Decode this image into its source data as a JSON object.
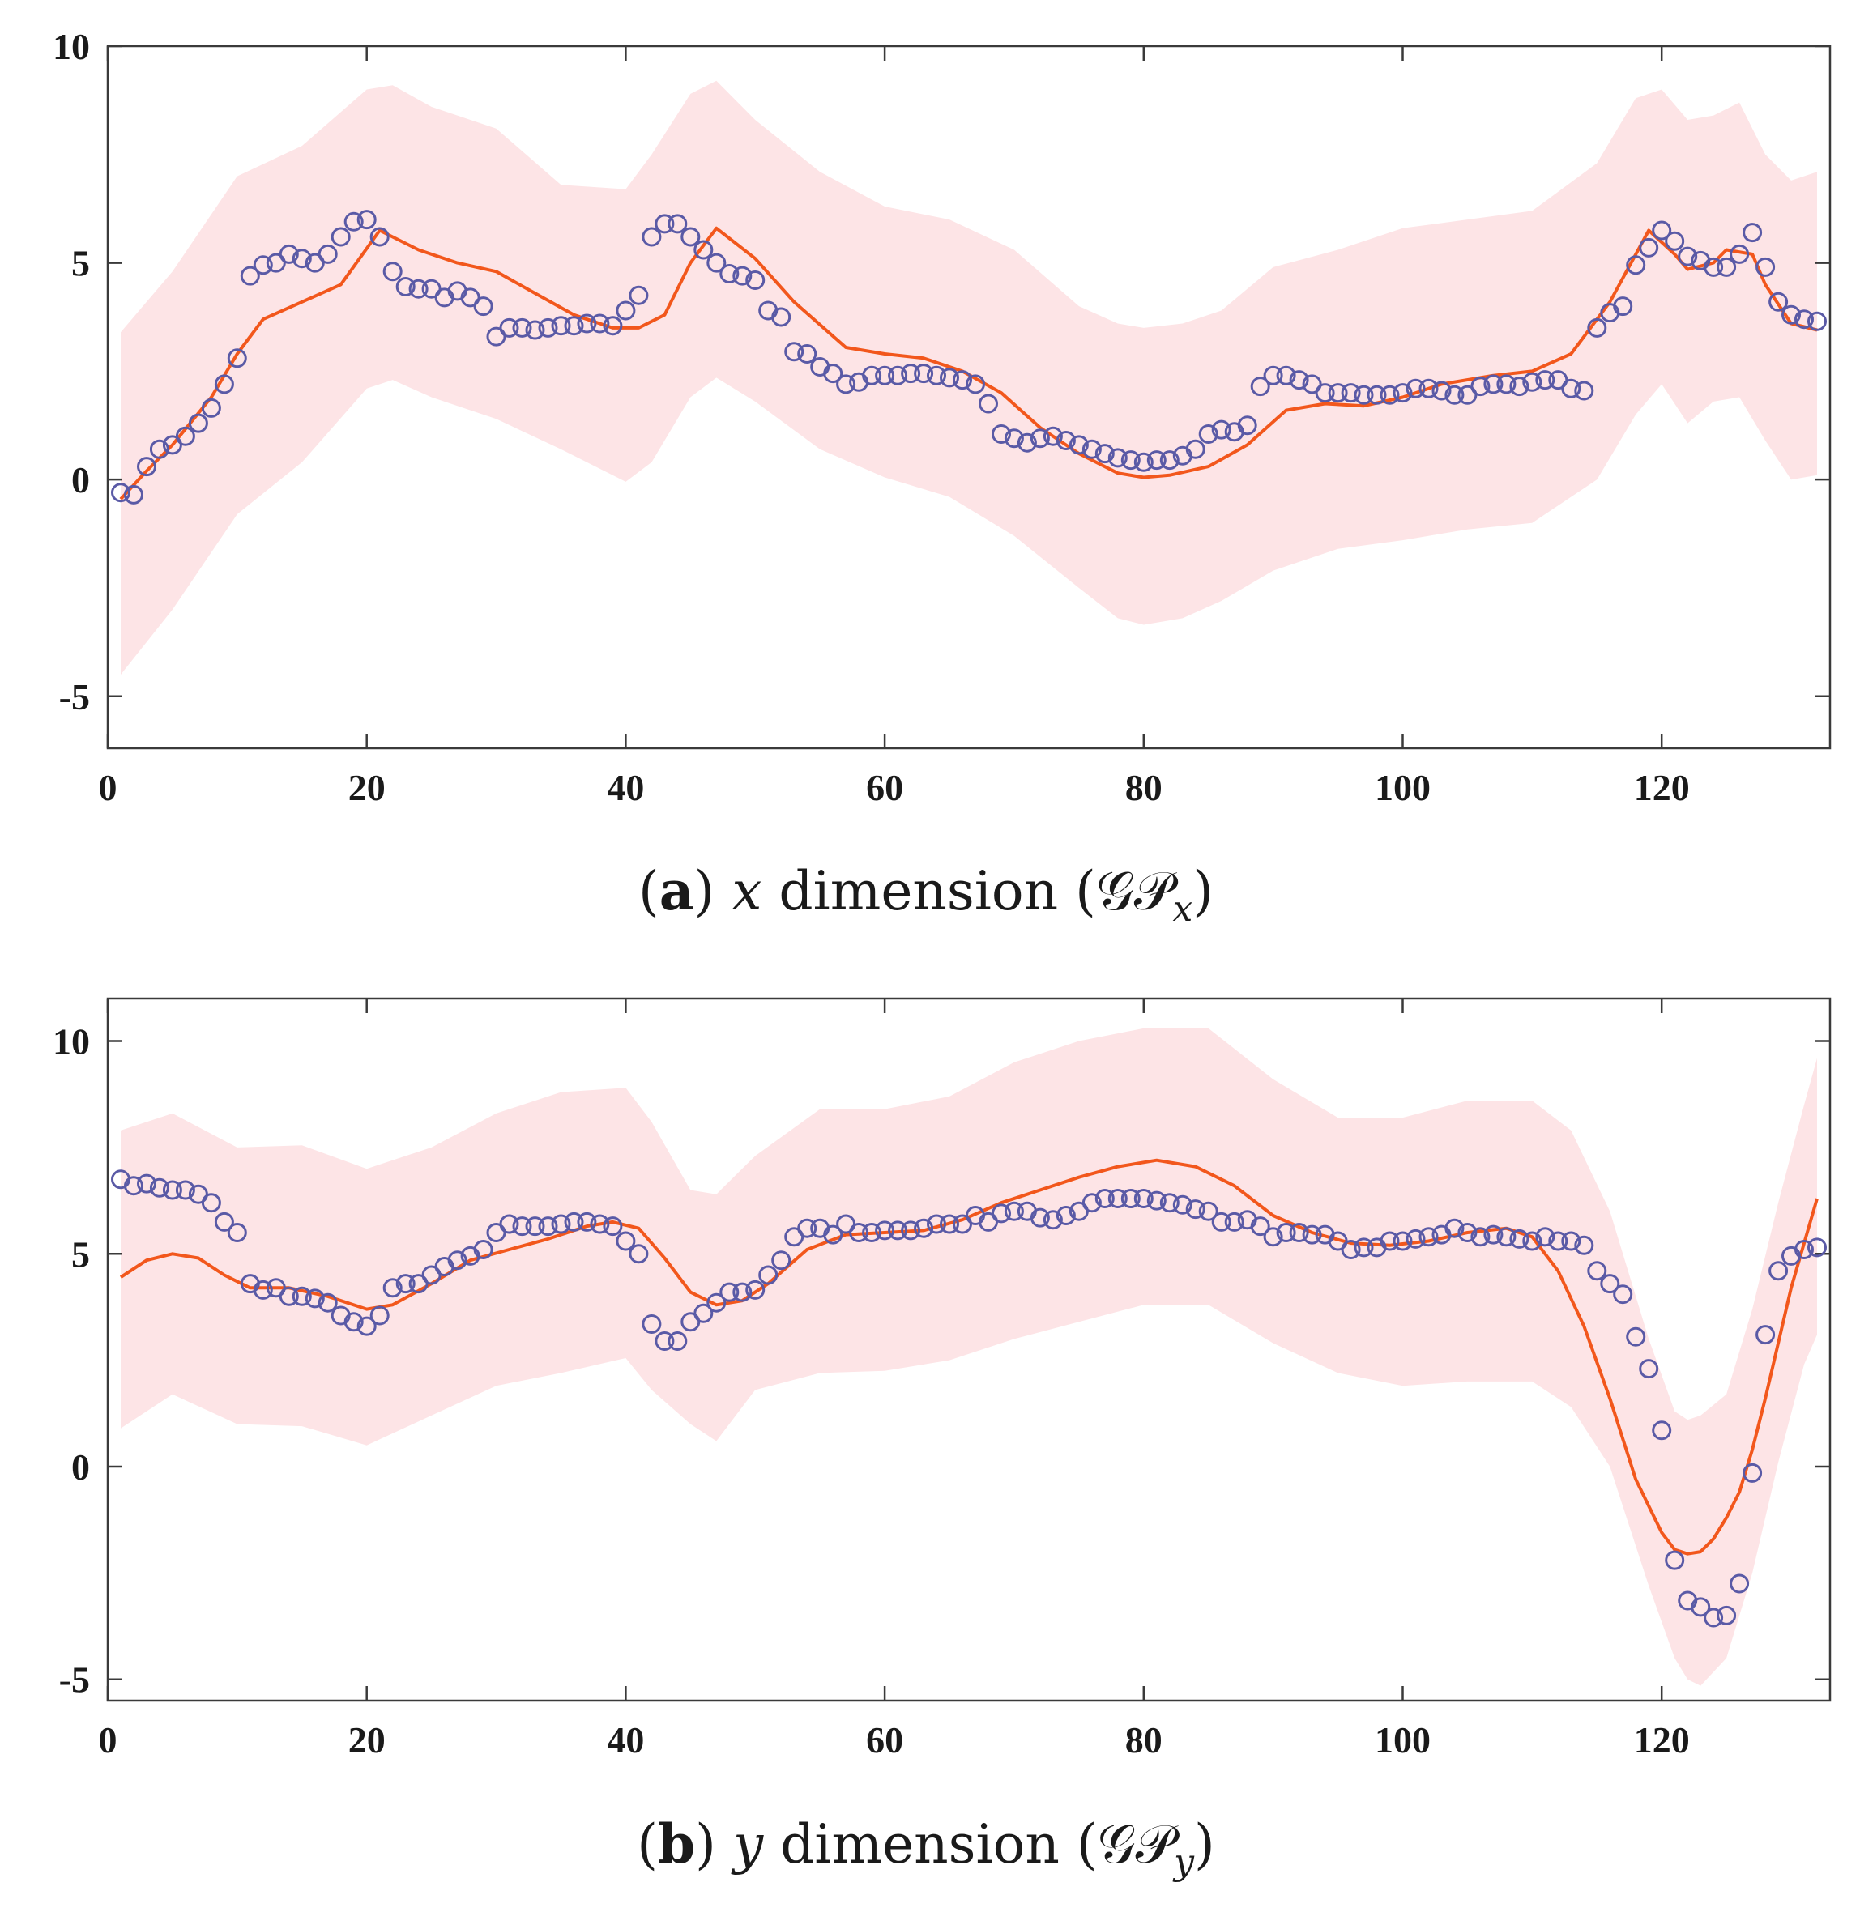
{
  "colors": {
    "band": "#fde4e6",
    "mean_line": "#f2571c",
    "observations": "#5a5aa6",
    "axes": "#3a3a3a"
  },
  "chart_data": [
    {
      "type": "line",
      "panel": "a",
      "caption": {
        "letter": "a",
        "variable": "x",
        "text": "dimension",
        "gp_label": "(𝒢𝒫",
        "subscript": "x",
        "close": ")"
      },
      "xlim": [
        0,
        133
      ],
      "ylim": [
        -6.2,
        10
      ],
      "xticks": [
        0,
        20,
        40,
        60,
        80,
        100,
        120
      ],
      "xtick_labels": [
        "0",
        "20",
        "40",
        "60",
        "80",
        "100",
        "120"
      ],
      "yticks": [
        -5,
        0,
        5,
        10
      ],
      "ytick_labels": [
        "-5",
        "0",
        "5",
        "10"
      ],
      "series": [
        {
          "name": "observations",
          "kind": "scatter",
          "x": [
            1,
            2,
            3,
            4,
            5,
            6,
            7,
            8,
            9,
            10,
            11,
            12,
            13,
            14,
            15,
            16,
            17,
            18,
            19,
            20,
            21,
            22,
            23,
            24,
            25,
            26,
            27,
            28,
            29,
            30,
            31,
            32,
            33,
            34,
            35,
            36,
            37,
            38,
            39,
            40,
            41,
            42,
            43,
            44,
            45,
            46,
            47,
            48,
            49,
            50,
            51,
            52,
            53,
            54,
            55,
            56,
            57,
            58,
            59,
            60,
            61,
            62,
            63,
            64,
            65,
            66,
            67,
            68,
            69,
            70,
            71,
            72,
            73,
            74,
            75,
            76,
            77,
            78,
            79,
            80,
            81,
            82,
            83,
            84,
            85,
            86,
            87,
            88,
            89,
            90,
            91,
            92,
            93,
            94,
            95,
            96,
            97,
            98,
            99,
            100,
            101,
            102,
            103,
            104,
            105,
            106,
            107,
            108,
            109,
            110,
            111,
            112,
            113,
            114,
            115,
            116,
            117,
            118,
            119,
            120,
            121,
            122,
            123,
            124,
            125,
            126,
            127,
            128,
            129,
            130,
            131,
            132
          ],
          "y": [
            -0.3,
            -0.35,
            0.3,
            0.7,
            0.8,
            1.0,
            1.3,
            1.65,
            2.2,
            2.8,
            4.7,
            4.95,
            5.0,
            5.2,
            5.1,
            5.0,
            5.2,
            5.6,
            5.95,
            6.0,
            5.6,
            4.8,
            4.45,
            4.4,
            4.4,
            4.2,
            4.35,
            4.2,
            4.0,
            3.3,
            3.5,
            3.5,
            3.45,
            3.5,
            3.55,
            3.55,
            3.6,
            3.6,
            3.55,
            3.9,
            4.25,
            5.6,
            5.9,
            5.9,
            5.6,
            5.3,
            5.0,
            4.75,
            4.7,
            4.6,
            3.9,
            3.75,
            2.95,
            2.9,
            2.6,
            2.45,
            2.2,
            2.25,
            2.4,
            2.4,
            2.4,
            2.45,
            2.45,
            2.4,
            2.35,
            2.3,
            2.2,
            1.75,
            1.05,
            0.95,
            0.85,
            0.95,
            1.0,
            0.9,
            0.8,
            0.7,
            0.6,
            0.5,
            0.45,
            0.4,
            0.45,
            0.45,
            0.55,
            0.7,
            1.05,
            1.15,
            1.1,
            1.25,
            2.15,
            2.4,
            2.4,
            2.3,
            2.2,
            2.0,
            2.0,
            2.0,
            1.95,
            1.95,
            1.95,
            2.0,
            2.1,
            2.1,
            2.05,
            1.95,
            1.95,
            2.15,
            2.2,
            2.2,
            2.15,
            2.25,
            2.3,
            2.3,
            2.1,
            2.05,
            3.5,
            3.85,
            4.0,
            4.95,
            5.35,
            5.75,
            5.5,
            5.15,
            5.05,
            4.9,
            4.9,
            5.2,
            5.7,
            4.9,
            4.1,
            3.8,
            3.7,
            3.65
          ]
        },
        {
          "name": "GP mean",
          "kind": "line",
          "x": [
            1,
            3,
            5,
            8,
            10,
            12,
            15,
            18,
            21,
            24,
            27,
            30,
            33,
            36,
            39,
            41,
            43,
            45,
            47,
            50,
            53,
            57,
            60,
            63,
            66,
            69,
            72,
            75,
            78,
            80,
            82,
            85,
            88,
            91,
            94,
            97,
            100,
            103,
            107,
            110,
            113,
            116,
            119,
            121,
            122,
            124,
            125,
            127,
            128,
            130,
            132
          ],
          "y": [
            -0.45,
            0.2,
            0.8,
            1.9,
            2.9,
            3.7,
            4.1,
            4.5,
            5.75,
            5.3,
            5.0,
            4.8,
            4.3,
            3.8,
            3.5,
            3.5,
            3.8,
            5.0,
            5.8,
            5.1,
            4.1,
            3.05,
            2.9,
            2.8,
            2.5,
            2.0,
            1.2,
            0.6,
            0.15,
            0.05,
            0.1,
            0.3,
            0.8,
            1.6,
            1.75,
            1.7,
            1.9,
            2.2,
            2.4,
            2.5,
            2.9,
            4.1,
            5.75,
            5.2,
            4.85,
            5.0,
            5.3,
            5.2,
            4.5,
            3.6,
            3.45
          ]
        },
        {
          "name": "confidence band",
          "kind": "area",
          "x": [
            1,
            5,
            10,
            15,
            20,
            22,
            25,
            30,
            35,
            40,
            42,
            45,
            47,
            50,
            55,
            60,
            65,
            70,
            75,
            78,
            80,
            83,
            86,
            90,
            95,
            100,
            105,
            110,
            115,
            118,
            120,
            122,
            124,
            126,
            128,
            130,
            132
          ],
          "upper": [
            3.4,
            4.8,
            7.0,
            7.7,
            9.0,
            9.1,
            8.6,
            8.1,
            6.8,
            6.7,
            7.5,
            8.9,
            9.2,
            8.3,
            7.1,
            6.3,
            6.0,
            5.3,
            4.0,
            3.6,
            3.5,
            3.6,
            3.9,
            4.9,
            5.3,
            5.8,
            6.0,
            6.2,
            7.3,
            8.8,
            9.0,
            8.3,
            8.4,
            8.7,
            7.5,
            6.9,
            7.1
          ],
          "lower": [
            -4.5,
            -3.0,
            -0.8,
            0.4,
            2.1,
            2.3,
            1.9,
            1.4,
            0.7,
            -0.05,
            0.4,
            1.9,
            2.35,
            1.8,
            0.7,
            0.05,
            -0.4,
            -1.3,
            -2.5,
            -3.2,
            -3.35,
            -3.2,
            -2.8,
            -2.1,
            -1.6,
            -1.4,
            -1.15,
            -1.0,
            0.0,
            1.5,
            2.2,
            1.3,
            1.8,
            1.9,
            0.9,
            0.0,
            0.1
          ]
        }
      ]
    },
    {
      "type": "line",
      "panel": "b",
      "caption": {
        "letter": "b",
        "variable": "y",
        "text": "dimension",
        "gp_label": "(𝒢𝒫",
        "subscript": "y",
        "close": ")"
      },
      "xlim": [
        0,
        133
      ],
      "ylim": [
        -5.5,
        11
      ],
      "xticks": [
        0,
        20,
        40,
        60,
        80,
        100,
        120
      ],
      "xtick_labels": [
        "0",
        "20",
        "40",
        "60",
        "80",
        "100",
        "120"
      ],
      "yticks": [
        -5,
        0,
        5,
        10
      ],
      "ytick_labels": [
        "-5",
        "0",
        "5",
        "10"
      ],
      "series": [
        {
          "name": "observations",
          "kind": "scatter",
          "x": [
            1,
            2,
            3,
            4,
            5,
            6,
            7,
            8,
            9,
            10,
            11,
            12,
            13,
            14,
            15,
            16,
            17,
            18,
            19,
            20,
            21,
            22,
            23,
            24,
            25,
            26,
            27,
            28,
            29,
            30,
            31,
            32,
            33,
            34,
            35,
            36,
            37,
            38,
            39,
            40,
            41,
            42,
            43,
            44,
            45,
            46,
            47,
            48,
            49,
            50,
            51,
            52,
            53,
            54,
            55,
            56,
            57,
            58,
            59,
            60,
            61,
            62,
            63,
            64,
            65,
            66,
            67,
            68,
            69,
            70,
            71,
            72,
            73,
            74,
            75,
            76,
            77,
            78,
            79,
            80,
            81,
            82,
            83,
            84,
            85,
            86,
            87,
            88,
            89,
            90,
            91,
            92,
            93,
            94,
            95,
            96,
            97,
            98,
            99,
            100,
            101,
            102,
            103,
            104,
            105,
            106,
            107,
            108,
            109,
            110,
            111,
            112,
            113,
            114,
            115,
            116,
            117,
            118,
            119,
            120,
            121,
            122,
            123,
            124,
            125,
            126,
            127,
            128,
            129,
            130,
            131,
            132
          ],
          "y": [
            6.75,
            6.6,
            6.65,
            6.55,
            6.5,
            6.5,
            6.4,
            6.2,
            5.75,
            5.5,
            4.3,
            4.15,
            4.2,
            4.0,
            4.0,
            3.95,
            3.85,
            3.55,
            3.4,
            3.3,
            3.55,
            4.2,
            4.3,
            4.3,
            4.5,
            4.7,
            4.85,
            4.95,
            5.1,
            5.5,
            5.7,
            5.65,
            5.65,
            5.65,
            5.7,
            5.75,
            5.75,
            5.7,
            5.65,
            5.3,
            5.0,
            3.35,
            2.95,
            2.95,
            3.4,
            3.6,
            3.85,
            4.1,
            4.1,
            4.15,
            4.5,
            4.85,
            5.4,
            5.6,
            5.6,
            5.45,
            5.7,
            5.5,
            5.5,
            5.55,
            5.55,
            5.55,
            5.6,
            5.7,
            5.7,
            5.7,
            5.9,
            5.75,
            5.95,
            6.0,
            6.0,
            5.85,
            5.8,
            5.9,
            6.0,
            6.2,
            6.3,
            6.3,
            6.3,
            6.3,
            6.25,
            6.2,
            6.15,
            6.05,
            6.0,
            5.75,
            5.75,
            5.8,
            5.65,
            5.4,
            5.5,
            5.5,
            5.45,
            5.45,
            5.3,
            5.1,
            5.15,
            5.15,
            5.3,
            5.3,
            5.35,
            5.4,
            5.45,
            5.6,
            5.5,
            5.4,
            5.45,
            5.4,
            5.35,
            5.3,
            5.4,
            5.3,
            5.3,
            5.2,
            4.6,
            4.3,
            4.05,
            3.05,
            2.3,
            0.85,
            -2.2,
            -3.15,
            -3.3,
            -3.55,
            -3.5,
            -2.75,
            -0.15,
            3.1,
            4.6,
            4.95,
            5.1,
            5.15
          ]
        },
        {
          "name": "GP mean",
          "kind": "line",
          "x": [
            1,
            3,
            5,
            7,
            9,
            11,
            14,
            17,
            20,
            22,
            25,
            28,
            31,
            34,
            37,
            39,
            41,
            43,
            45,
            47,
            49,
            51,
            54,
            57,
            60,
            63,
            66,
            69,
            72,
            75,
            78,
            81,
            84,
            87,
            90,
            93,
            96,
            99,
            102,
            105,
            108,
            110,
            112,
            114,
            116,
            118,
            120,
            121,
            122,
            123,
            124,
            125,
            126,
            127,
            128,
            130,
            132
          ],
          "y": [
            4.45,
            4.85,
            5.0,
            4.9,
            4.5,
            4.2,
            4.2,
            4.0,
            3.7,
            3.8,
            4.3,
            4.85,
            5.1,
            5.35,
            5.65,
            5.75,
            5.6,
            4.9,
            4.1,
            3.8,
            3.9,
            4.3,
            5.1,
            5.45,
            5.5,
            5.55,
            5.8,
            6.2,
            6.5,
            6.8,
            7.05,
            7.2,
            7.05,
            6.6,
            5.9,
            5.5,
            5.25,
            5.2,
            5.3,
            5.5,
            5.6,
            5.4,
            4.6,
            3.3,
            1.6,
            -0.3,
            -1.55,
            -1.95,
            -2.05,
            -2.0,
            -1.7,
            -1.2,
            -0.6,
            0.4,
            1.6,
            4.2,
            6.3
          ]
        },
        {
          "name": "confidence band",
          "kind": "area",
          "x": [
            1,
            5,
            10,
            15,
            20,
            25,
            30,
            35,
            40,
            42,
            45,
            47,
            50,
            55,
            60,
            65,
            70,
            75,
            80,
            85,
            90,
            95,
            100,
            105,
            110,
            113,
            116,
            119,
            121,
            122,
            123,
            125,
            127,
            129,
            131,
            132
          ],
          "upper": [
            7.9,
            8.3,
            7.5,
            7.55,
            7.0,
            7.5,
            8.3,
            8.8,
            8.9,
            8.1,
            6.5,
            6.4,
            7.3,
            8.4,
            8.4,
            8.7,
            9.5,
            10.0,
            10.3,
            10.3,
            9.1,
            8.2,
            8.2,
            8.6,
            8.6,
            7.9,
            6.0,
            3.0,
            1.3,
            1.1,
            1.2,
            1.7,
            3.7,
            6.2,
            8.5,
            9.6
          ],
          "lower": [
            0.9,
            1.7,
            1.0,
            0.95,
            0.5,
            1.2,
            1.9,
            2.2,
            2.55,
            1.8,
            1.0,
            0.6,
            1.8,
            2.2,
            2.25,
            2.5,
            3.0,
            3.4,
            3.8,
            3.8,
            2.9,
            2.2,
            1.9,
            2.0,
            2.0,
            1.4,
            0.0,
            -2.8,
            -4.5,
            -5.0,
            -5.15,
            -4.5,
            -2.5,
            0.1,
            2.4,
            3.1
          ]
        }
      ]
    }
  ]
}
